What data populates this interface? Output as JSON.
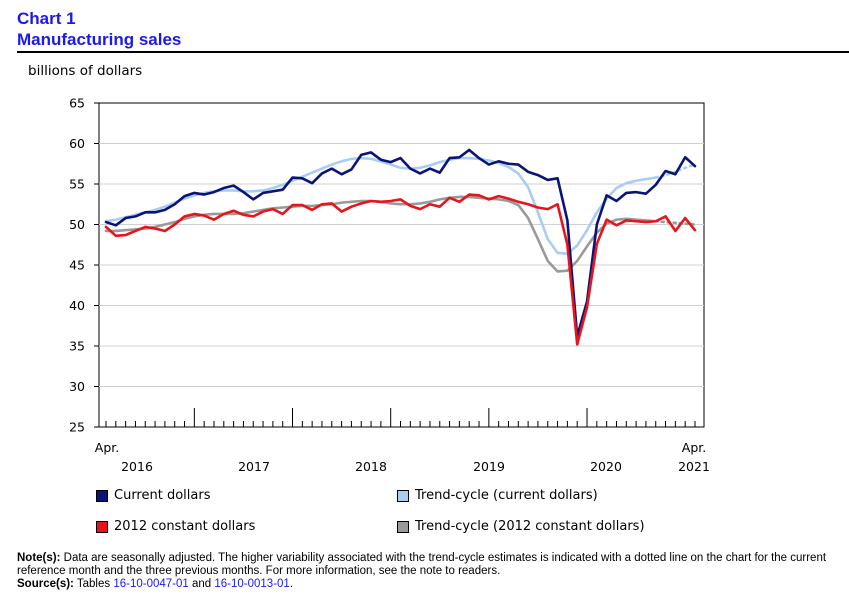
{
  "header": {
    "chart_number": "Chart 1",
    "chart_title": "Manufacturing sales",
    "unit_label": "billions of dollars"
  },
  "notes": {
    "note_label": "Note(s):",
    "note_text": "Data are seasonally adjusted. The higher variability associated with the trend-cycle estimates is indicated with a dotted line on the chart for the current reference month and the three previous months. For more information, see the note to readers.",
    "source_label": "Source(s):",
    "source_prefix": "Tables",
    "source_link_1": "16-10-0047-01",
    "source_and": "and",
    "source_link_2": "16-10-0013-01",
    "source_end": "."
  },
  "chart_data": {
    "type": "line",
    "title": "Manufacturing sales",
    "ylabel": "billions of dollars",
    "ylim": [
      25,
      65
    ],
    "yticks": [
      25,
      30,
      35,
      40,
      45,
      50,
      55,
      60,
      65
    ],
    "x_start": "Apr. 2016",
    "x_end": "Apr. 2021",
    "n_months": 61,
    "x_month_labels": [
      "Apr.",
      "Apr."
    ],
    "x_year_labels": [
      "2016",
      "2017",
      "2018",
      "2019",
      "2020",
      "2021"
    ],
    "x_year_label_month_index": [
      4,
      14,
      24,
      34,
      44,
      54
    ],
    "x_year_start_month_index": [
      9,
      19,
      29,
      39,
      49
    ],
    "dotted_last_n_points": 4,
    "colors": {
      "current": "#0a1478",
      "trend_current": "#a9cdf2",
      "constant": "#e8141c",
      "trend_constant": "#9a9a9a"
    },
    "legend": [
      {
        "key": "current",
        "label": "Current dollars"
      },
      {
        "key": "trend_current",
        "label": "Trend-cycle (current dollars)"
      },
      {
        "key": "constant",
        "label": "2012 constant dollars"
      },
      {
        "key": "trend_constant",
        "label": "Trend-cycle (2012 constant dollars)"
      }
    ],
    "series": [
      {
        "key": "trend_current",
        "name": "Trend-cycle (current dollars)",
        "values": [
          50.4,
          50.6,
          50.9,
          51.2,
          51.5,
          51.8,
          52.2,
          52.7,
          53.2,
          53.6,
          53.9,
          54.1,
          54.2,
          54.2,
          54.1,
          54.1,
          54.2,
          54.5,
          54.9,
          55.4,
          55.9,
          56.4,
          56.9,
          57.4,
          57.8,
          58.1,
          58.2,
          58.1,
          57.8,
          57.4,
          57.0,
          56.9,
          57.0,
          57.3,
          57.7,
          58.0,
          58.2,
          58.2,
          58.1,
          57.9,
          57.6,
          57.1,
          56.3,
          54.6,
          51.5,
          48.2,
          46.5,
          46.4,
          47.4,
          49.3,
          51.5,
          53.2,
          54.5,
          55.1,
          55.4,
          55.6,
          55.8,
          56.1,
          56.5,
          57.0,
          57.4
        ]
      },
      {
        "key": "trend_constant",
        "name": "Trend-cycle (2012 constant dollars)",
        "values": [
          49.2,
          49.2,
          49.3,
          49.4,
          49.5,
          49.7,
          50.0,
          50.3,
          50.7,
          51.0,
          51.2,
          51.3,
          51.3,
          51.3,
          51.4,
          51.6,
          51.8,
          52.0,
          52.1,
          52.2,
          52.3,
          52.3,
          52.4,
          52.5,
          52.7,
          52.8,
          52.9,
          52.9,
          52.8,
          52.6,
          52.5,
          52.5,
          52.6,
          52.8,
          53.1,
          53.3,
          53.4,
          53.4,
          53.3,
          53.2,
          53.1,
          52.9,
          52.4,
          50.8,
          48.2,
          45.5,
          44.2,
          44.3,
          45.5,
          47.3,
          49.0,
          50.1,
          50.6,
          50.7,
          50.6,
          50.5,
          50.4,
          50.3,
          50.2,
          50.1,
          50.0
        ]
      },
      {
        "key": "current",
        "name": "Current dollars",
        "values": [
          50.3,
          49.9,
          50.8,
          51.0,
          51.5,
          51.5,
          51.8,
          52.5,
          53.5,
          53.9,
          53.7,
          54.0,
          54.5,
          54.8,
          54.0,
          53.1,
          53.9,
          54.1,
          54.3,
          55.8,
          55.7,
          55.1,
          56.3,
          56.9,
          56.2,
          56.8,
          58.6,
          58.9,
          58.0,
          57.7,
          58.2,
          56.9,
          56.3,
          56.9,
          56.4,
          58.2,
          58.3,
          59.2,
          58.2,
          57.4,
          57.8,
          57.5,
          57.4,
          56.5,
          56.1,
          55.5,
          55.7,
          50.5,
          36.2,
          40.5,
          50.0,
          53.6,
          52.9,
          53.9,
          54.0,
          53.8,
          54.9,
          56.6,
          56.2,
          58.3,
          57.2
        ]
      },
      {
        "key": "constant",
        "name": "2012 constant dollars",
        "values": [
          49.7,
          48.6,
          48.7,
          49.2,
          49.7,
          49.5,
          49.2,
          50.0,
          51.0,
          51.3,
          51.1,
          50.6,
          51.3,
          51.7,
          51.2,
          51.0,
          51.6,
          51.9,
          51.3,
          52.4,
          52.4,
          51.8,
          52.5,
          52.6,
          51.6,
          52.2,
          52.6,
          52.9,
          52.8,
          52.9,
          53.1,
          52.3,
          51.9,
          52.5,
          52.2,
          53.3,
          52.8,
          53.7,
          53.6,
          53.1,
          53.5,
          53.2,
          52.8,
          52.5,
          52.1,
          51.9,
          52.5,
          47.5,
          35.2,
          39.8,
          47.6,
          50.6,
          49.9,
          50.5,
          50.4,
          50.3,
          50.4,
          51.0,
          49.2,
          50.8,
          49.3
        ]
      }
    ]
  }
}
